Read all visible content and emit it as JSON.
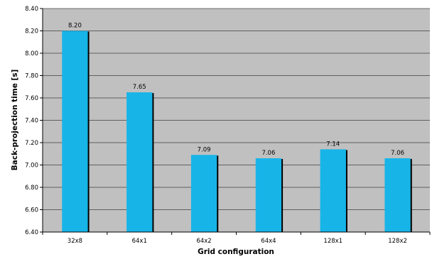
{
  "chart_data": {
    "type": "bar",
    "title": "",
    "xlabel": "Grid configuration",
    "ylabel": "Back-projection time [s]",
    "categories": [
      "32x8",
      "64x1",
      "64x2",
      "64x4",
      "128x1",
      "128x2"
    ],
    "values": [
      8.2,
      7.65,
      7.09,
      7.06,
      7.14,
      7.06
    ],
    "data_labels": [
      "8.20",
      "7.65",
      "7.09",
      "7.06",
      "7.14",
      "7.06"
    ],
    "ylim": [
      6.4,
      8.4
    ],
    "yticks": [
      6.4,
      6.6,
      6.8,
      7.0,
      7.2,
      7.4,
      7.6,
      7.8,
      8.0,
      8.2,
      8.4
    ],
    "ytick_labels": [
      "6.40",
      "6.60",
      "6.80",
      "7.00",
      "7.20",
      "7.40",
      "7.60",
      "7.80",
      "8.00",
      "8.20",
      "8.40"
    ],
    "grid": true,
    "legend": "none",
    "colors": {
      "bar": "#17b4e8",
      "bar_shadow": "#000000",
      "plot_background": "#c0c0c0",
      "gridline": "#000000"
    }
  }
}
